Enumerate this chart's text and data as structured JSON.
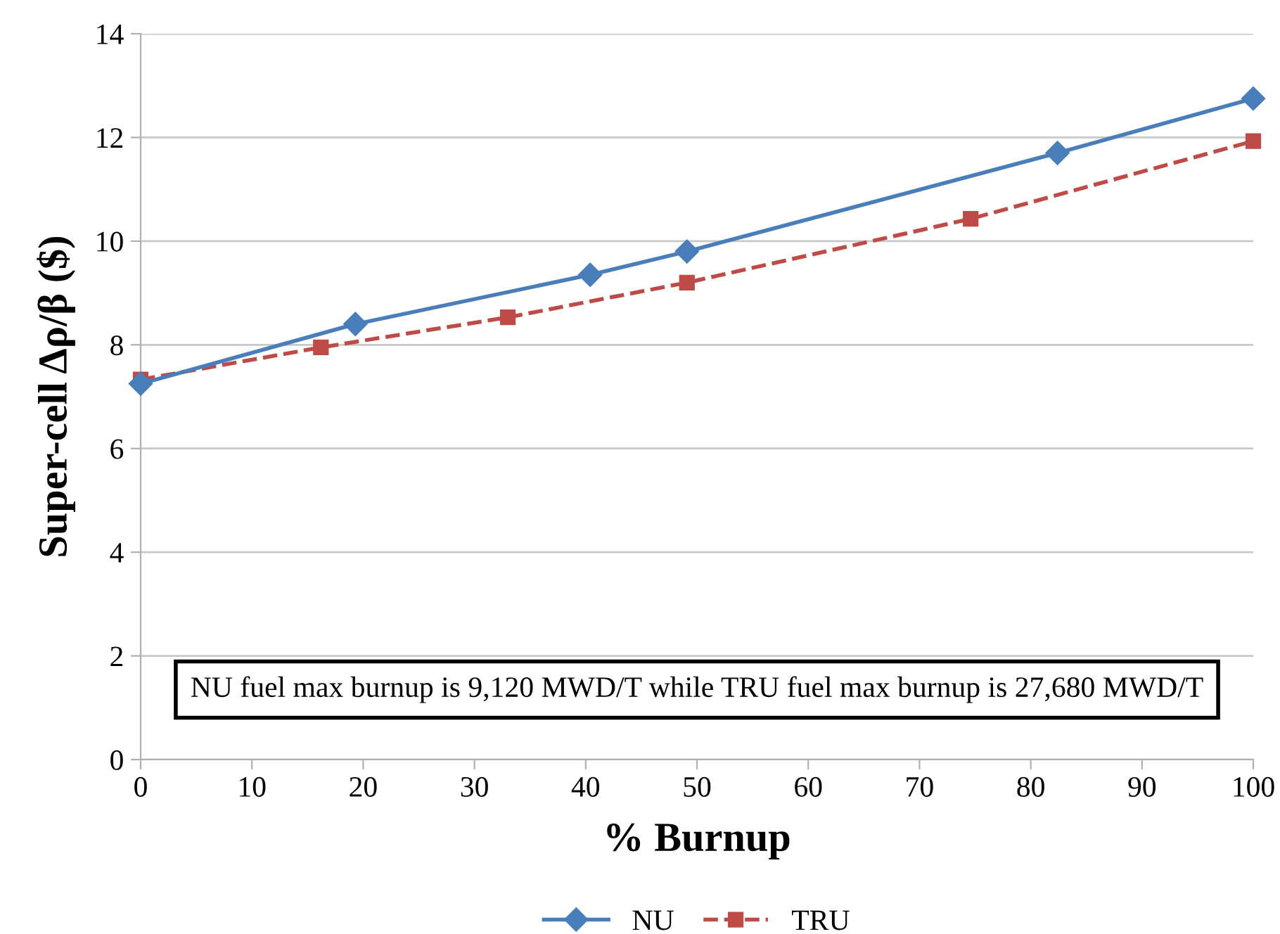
{
  "chart_data": {
    "type": "line",
    "xlabel": "% Burnup",
    "ylabel": "Super-cell Δρ/β ($)",
    "annotations": [
      "NU fuel max burnup is 9,120 MWD/T while TRU fuel max burnup is 27,680 MWD/T"
    ],
    "series": [
      {
        "name": "NU",
        "color": "#4a7ebb",
        "x": [
          0,
          19.3,
          40.4,
          49.1,
          82.4,
          100
        ],
        "values": [
          7.25,
          8.4,
          9.35,
          9.8,
          11.7,
          12.75
        ],
        "marker": "diamond",
        "line_style": "solid"
      },
      {
        "name": "TRU",
        "color": "#be4b48",
        "x": [
          0,
          16.2,
          33.0,
          49.1,
          74.6,
          100
        ],
        "values": [
          7.33,
          7.95,
          8.53,
          9.2,
          10.43,
          11.93
        ],
        "marker": "square",
        "line_style": "dashed"
      }
    ],
    "xlim": [
      0,
      100
    ],
    "xticks": [
      0,
      10,
      20,
      30,
      40,
      50,
      60,
      70,
      80,
      90,
      100
    ],
    "ylim": [
      0,
      14
    ],
    "yticks": [
      0,
      2,
      4,
      6,
      8,
      10,
      12,
      14
    ],
    "grid": "y",
    "legend": "bottom"
  }
}
